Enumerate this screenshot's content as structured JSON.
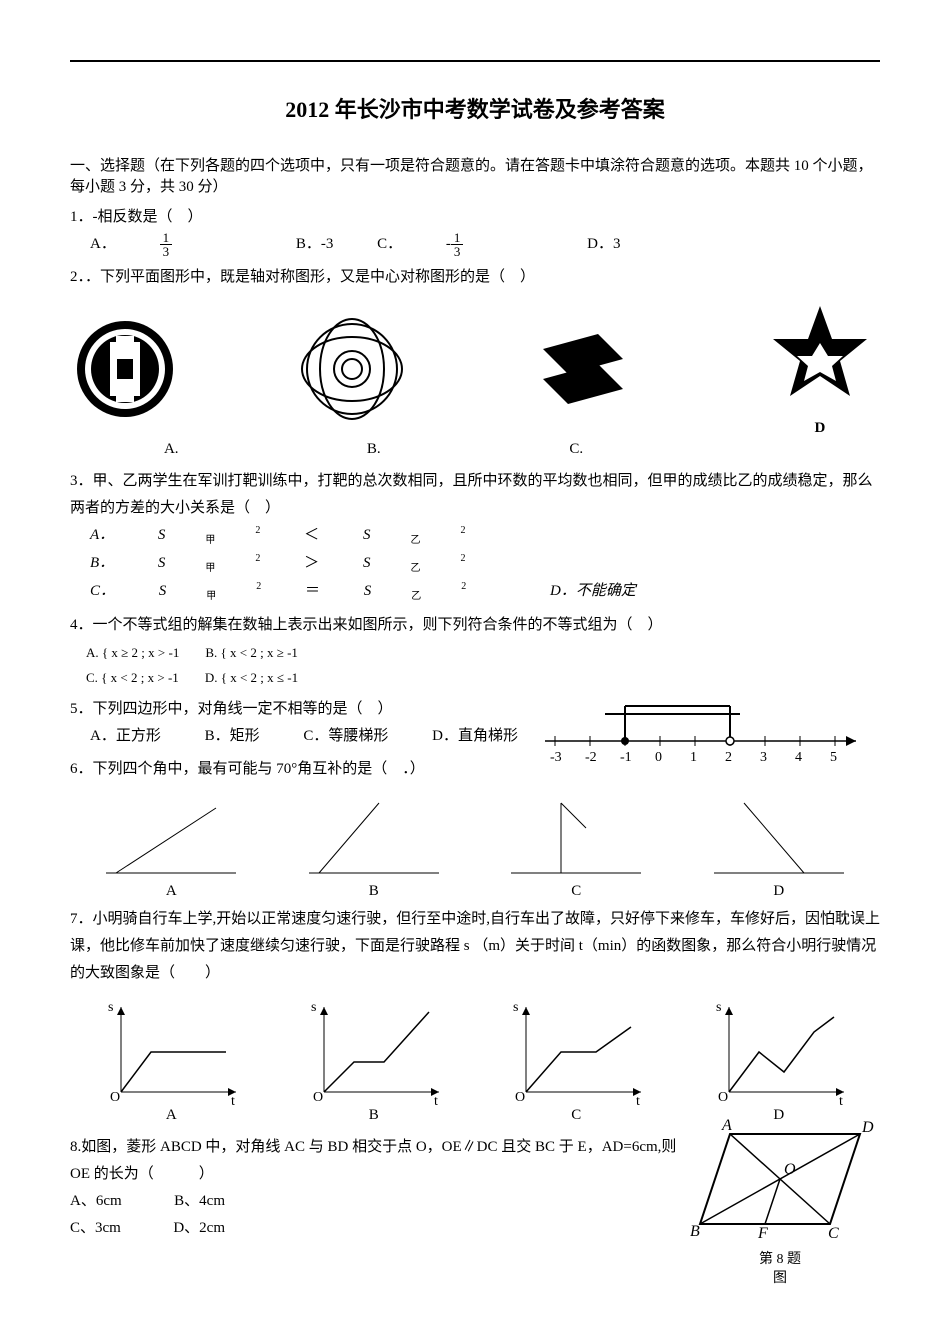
{
  "title": "2012 年长沙市中考数学试卷及参考答案",
  "section1": {
    "heading": "一、选择题（在下列各题的四个选项中，只有一项是符合题意的。请在答题卡中填涂符合题意的选项。本题共 10 个小题，每小题 3 分，共 30 分）"
  },
  "q1": {
    "stem": "1．-相反数是（　）",
    "optA_label": "A．",
    "optA_num": "1",
    "optA_den": "3",
    "optB": "B．-3",
    "optC_label": "C．",
    "optC_num": "1",
    "optC_den": "3",
    "optD": "D．3"
  },
  "q2": {
    "stem": "2．．下列平面图形中，既是轴对称图形，又是中心对称图形的是（　）",
    "labelA": "A.",
    "labelB": "B.",
    "labelC": "C.",
    "labelD": "D",
    "colors": {
      "stroke": "#000000",
      "fill": "#000000",
      "bg": "#ffffff"
    }
  },
  "q3": {
    "stem": "3．甲、乙两学生在军训打靶训练中，打靶的总次数相同，且所中环数的平均数也相同，但甲的成绩比乙的成绩稳定，那么两者的方差的大小关系是（　）",
    "A_label": "A．",
    "A_l": "S",
    "A_sub1": "甲",
    "A_sup": "2",
    "A_rel": "＜",
    "A_r": "S",
    "A_sub2": "乙",
    "B_label": "B．",
    "B_rel": "＞",
    "C_label": "C．",
    "C_rel": "＝",
    "D": "D．不能确定"
  },
  "q4": {
    "stem": "4．一个不等式组的解集在数轴上表示出来如图所示，则下列符合条件的不等式组为（　）",
    "A": "A.",
    "B": "B.",
    "C": "C.",
    "D": "D.",
    "sysA1": "x ≥ 2",
    "sysA2": "x > -1",
    "sysB1": "x < 2",
    "sysB2": "x ≥ -1",
    "sysC1": "x < 2",
    "sysC2": "x > -1",
    "sysD1": "x < 2",
    "sysD2": "x ≤ -1",
    "numline": {
      "ticks": [
        "-3",
        "-2",
        "-1",
        "0",
        "1",
        "2",
        "3",
        "4",
        "5"
      ],
      "color": "#000000"
    }
  },
  "q5": {
    "stem": "5．下列四边形中，对角线一定不相等的是（　）",
    "A": "A．正方形",
    "B": "B．矩形",
    "C": "C．等腰梯形",
    "D": "D．直角梯形"
  },
  "q6": {
    "stem": "6．下列四个角中，最有可能与 70°角互补的是（　．）",
    "A": "A",
    "B": "B",
    "C": "C",
    "D": "D",
    "color": "#000000"
  },
  "q7": {
    "stem": "7．小明骑自行车上学,开始以正常速度匀速行驶，但行至中途时,自行车出了故障，只好停下来修车，车修好后，因怕耽误上课，他比修车前加快了速度继续匀速行驶，下面是行驶路程 s （m）关于时间 t（min）的函数图象，那么符合小明行驶情况的大致图象是（　　）",
    "axis_s": "s",
    "axis_t": "t",
    "origin": "O",
    "labA": "A",
    "labB": "B",
    "labC": "C",
    "labD": "D",
    "color": "#000000"
  },
  "q8": {
    "stem": "8.如图，菱形 ABCD 中，对角线 AC 与 BD 相交于点 O，OE∥DC 且交 BC 于 E，AD=6cm,则 OE 的长为（　　　）",
    "A": "A、6cm",
    "B": "B、4cm",
    "C": "C、3cm",
    "D": "D、2cm",
    "fig": {
      "A": "A",
      "B": "B",
      "C": "C",
      "D": "D",
      "O": "O",
      "F": "F"
    },
    "caption1": "第 8 题",
    "caption2": "图",
    "color": "#000000"
  }
}
